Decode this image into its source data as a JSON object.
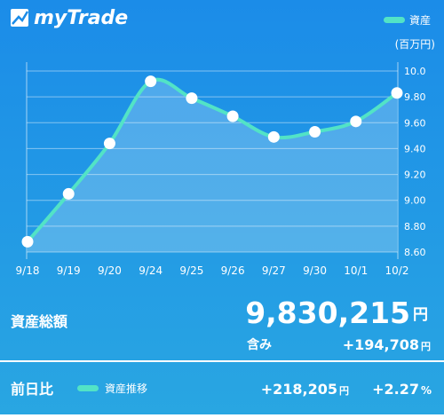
{
  "header": {
    "app_name": "myTrade"
  },
  "chart_data": {
    "type": "line",
    "unit": "(百万円)",
    "categories": [
      "9/18",
      "9/19",
      "9/20",
      "9/24",
      "9/25",
      "9/26",
      "9/27",
      "9/30",
      "10/1",
      "10/2"
    ],
    "series": [
      {
        "name": "資産",
        "color": "#52e3c6",
        "values": [
          8.68,
          9.05,
          9.44,
          9.92,
          9.79,
          9.65,
          9.49,
          9.53,
          9.61,
          9.83
        ]
      }
    ],
    "ylim": [
      8.6,
      10.0
    ],
    "yticks": [
      {
        "value": 8.6,
        "label": "8.60"
      },
      {
        "value": 8.8,
        "label": "8.80"
      },
      {
        "value": 9.0,
        "label": "9.00"
      },
      {
        "value": 9.2,
        "label": "9.20"
      },
      {
        "value": 9.4,
        "label": "9.40"
      },
      {
        "value": 9.6,
        "label": "9.60"
      },
      {
        "value": 9.8,
        "label": "9.80"
      },
      {
        "value": 10.0,
        "label": "10.0"
      }
    ],
    "grid": true
  },
  "summary": {
    "label": "資産総額",
    "total": "9,830,215",
    "total_unit": "円",
    "unrealized_label": "含み",
    "unrealized": "+194,708",
    "unrealized_unit": "円"
  },
  "footer": {
    "label": "前日比",
    "legend": "資産推移",
    "change": "+218,205",
    "change_unit": "円",
    "change_pct": "+2.27",
    "pct_unit": "%"
  }
}
